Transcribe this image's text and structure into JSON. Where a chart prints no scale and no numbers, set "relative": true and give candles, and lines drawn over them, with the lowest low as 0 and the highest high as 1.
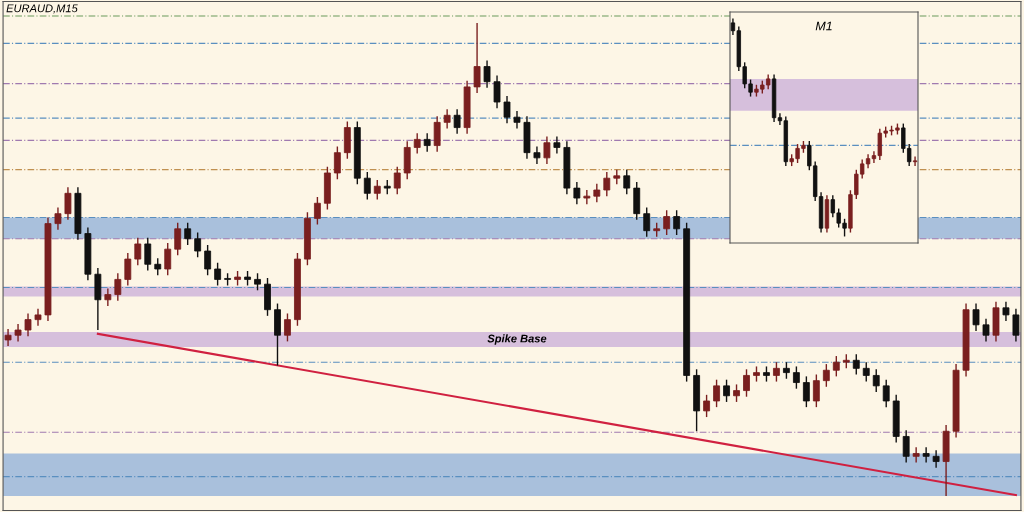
{
  "chart_data": [
    {
      "type": "candlestick",
      "title": "EURAUD,M15",
      "relative": true,
      "categories": [
        null,
        null,
        null,
        null,
        null,
        null,
        null,
        null,
        null,
        null,
        null,
        null,
        null,
        null,
        null,
        null,
        null,
        null,
        null,
        null,
        null,
        null,
        null,
        null,
        null,
        null,
        null,
        null,
        null,
        null,
        null,
        null,
        null,
        null,
        null,
        null,
        null,
        null,
        null,
        null,
        null,
        null,
        null,
        null,
        null,
        null,
        null,
        null,
        null,
        null,
        null,
        null,
        null,
        null,
        null,
        null,
        null,
        null,
        null,
        null,
        null,
        null,
        null,
        null,
        null,
        null,
        null,
        null,
        null,
        null,
        null,
        null,
        null,
        null,
        null,
        null,
        null,
        null,
        null,
        null,
        null,
        null,
        null,
        null,
        null,
        null,
        null,
        null,
        null,
        null,
        null,
        null,
        null,
        null,
        null,
        null,
        null,
        null,
        null,
        null,
        null,
        null
      ],
      "ohlc": [
        [
          0.33,
          0.353,
          0.317,
          0.34
        ],
        [
          0.34,
          0.364,
          0.327,
          0.351
        ],
        [
          0.351,
          0.386,
          0.338,
          0.373
        ],
        [
          0.373,
          0.396,
          0.36,
          0.383
        ],
        [
          0.383,
          0.589,
          0.37,
          0.576
        ],
        [
          0.576,
          0.61,
          0.563,
          0.597
        ],
        [
          0.597,
          0.653,
          0.584,
          0.64
        ],
        [
          0.64,
          0.653,
          0.542,
          0.555
        ],
        [
          0.555,
          0.568,
          0.456,
          0.469
        ],
        [
          0.469,
          0.482,
          0.351,
          0.415
        ],
        [
          0.415,
          0.439,
          0.402,
          0.426
        ],
        [
          0.426,
          0.471,
          0.413,
          0.458
        ],
        [
          0.458,
          0.514,
          0.445,
          0.501
        ],
        [
          0.501,
          0.546,
          0.488,
          0.533
        ],
        [
          0.533,
          0.546,
          0.477,
          0.49
        ],
        [
          0.49,
          0.503,
          0.467,
          0.48
        ],
        [
          0.48,
          0.535,
          0.467,
          0.522
        ],
        [
          0.522,
          0.578,
          0.509,
          0.565
        ],
        [
          0.565,
          0.578,
          0.531,
          0.544
        ],
        [
          0.544,
          0.557,
          0.505,
          0.518
        ],
        [
          0.518,
          0.531,
          0.467,
          0.48
        ],
        [
          0.48,
          0.493,
          0.445,
          0.458
        ],
        [
          0.458,
          0.471,
          0.445,
          0.458
        ],
        [
          0.458,
          0.476,
          0.445,
          0.463
        ],
        [
          0.463,
          0.476,
          0.445,
          0.458
        ],
        [
          0.458,
          0.471,
          0.435,
          0.448
        ],
        [
          0.448,
          0.461,
          0.381,
          0.394
        ],
        [
          0.394,
          0.407,
          0.276,
          0.34
        ],
        [
          0.34,
          0.386,
          0.327,
          0.373
        ],
        [
          0.373,
          0.514,
          0.36,
          0.501
        ],
        [
          0.501,
          0.6,
          0.488,
          0.587
        ],
        [
          0.587,
          0.632,
          0.574,
          0.619
        ],
        [
          0.619,
          0.696,
          0.606,
          0.683
        ],
        [
          0.683,
          0.739,
          0.67,
          0.726
        ],
        [
          0.726,
          0.792,
          0.713,
          0.779
        ],
        [
          0.779,
          0.792,
          0.659,
          0.672
        ],
        [
          0.672,
          0.685,
          0.627,
          0.64
        ],
        [
          0.64,
          0.668,
          0.627,
          0.655
        ],
        [
          0.655,
          0.668,
          0.638,
          0.651
        ],
        [
          0.651,
          0.696,
          0.638,
          0.683
        ],
        [
          0.683,
          0.75,
          0.67,
          0.737
        ],
        [
          0.737,
          0.767,
          0.724,
          0.754
        ],
        [
          0.754,
          0.767,
          0.728,
          0.741
        ],
        [
          0.741,
          0.803,
          0.728,
          0.79
        ],
        [
          0.79,
          0.818,
          0.777,
          0.805
        ],
        [
          0.805,
          0.818,
          0.766,
          0.779
        ],
        [
          0.779,
          0.878,
          0.766,
          0.865
        ],
        [
          0.865,
          1.0,
          0.852,
          0.908
        ],
        [
          0.908,
          0.921,
          0.863,
          0.876
        ],
        [
          0.876,
          0.889,
          0.82,
          0.833
        ],
        [
          0.833,
          0.846,
          0.788,
          0.801
        ],
        [
          0.801,
          0.814,
          0.777,
          0.79
        ],
        [
          0.79,
          0.803,
          0.713,
          0.726
        ],
        [
          0.726,
          0.739,
          0.702,
          0.715
        ],
        [
          0.715,
          0.76,
          0.702,
          0.747
        ],
        [
          0.747,
          0.76,
          0.724,
          0.737
        ],
        [
          0.737,
          0.75,
          0.638,
          0.651
        ],
        [
          0.651,
          0.664,
          0.617,
          0.63
        ],
        [
          0.63,
          0.647,
          0.617,
          0.634
        ],
        [
          0.634,
          0.66,
          0.621,
          0.647
        ],
        [
          0.647,
          0.685,
          0.634,
          0.672
        ],
        [
          0.672,
          0.69,
          0.659,
          0.677
        ],
        [
          0.677,
          0.69,
          0.638,
          0.651
        ],
        [
          0.651,
          0.664,
          0.584,
          0.597
        ],
        [
          0.597,
          0.61,
          0.548,
          0.561
        ],
        [
          0.561,
          0.578,
          0.548,
          0.565
        ],
        [
          0.565,
          0.604,
          0.552,
          0.591
        ],
        [
          0.591,
          0.604,
          0.552,
          0.565
        ],
        [
          0.565,
          0.578,
          0.242,
          0.255
        ],
        [
          0.255,
          0.268,
          0.137,
          0.18
        ],
        [
          0.18,
          0.214,
          0.167,
          0.201
        ],
        [
          0.201,
          0.246,
          0.188,
          0.233
        ],
        [
          0.233,
          0.246,
          0.199,
          0.212
        ],
        [
          0.212,
          0.236,
          0.199,
          0.223
        ],
        [
          0.223,
          0.268,
          0.21,
          0.255
        ],
        [
          0.255,
          0.274,
          0.242,
          0.261
        ],
        [
          0.261,
          0.274,
          0.242,
          0.255
        ],
        [
          0.255,
          0.283,
          0.242,
          0.27
        ],
        [
          0.27,
          0.283,
          0.248,
          0.261
        ],
        [
          0.261,
          0.274,
          0.227,
          0.24
        ],
        [
          0.24,
          0.253,
          0.188,
          0.201
        ],
        [
          0.201,
          0.257,
          0.188,
          0.244
        ],
        [
          0.244,
          0.279,
          0.231,
          0.266
        ],
        [
          0.266,
          0.296,
          0.253,
          0.283
        ],
        [
          0.283,
          0.3,
          0.27,
          0.287
        ],
        [
          0.287,
          0.3,
          0.257,
          0.27
        ],
        [
          0.27,
          0.283,
          0.242,
          0.255
        ],
        [
          0.255,
          0.268,
          0.22,
          0.233
        ],
        [
          0.233,
          0.246,
          0.188,
          0.201
        ],
        [
          0.201,
          0.214,
          0.113,
          0.126
        ],
        [
          0.126,
          0.139,
          0.071,
          0.084
        ],
        [
          0.084,
          0.103,
          0.071,
          0.09
        ],
        [
          0.09,
          0.103,
          0.071,
          0.084
        ],
        [
          0.084,
          0.097,
          0.06,
          0.073
        ],
        [
          0.073,
          0.15,
          0.0,
          0.137
        ],
        [
          0.137,
          0.279,
          0.124,
          0.266
        ],
        [
          0.266,
          0.407,
          0.253,
          0.394
        ],
        [
          0.394,
          0.407,
          0.349,
          0.362
        ],
        [
          0.362,
          0.375,
          0.327,
          0.34
        ],
        [
          0.34,
          0.411,
          0.327,
          0.398
        ],
        [
          0.398,
          0.411,
          0.37,
          0.383
        ],
        [
          0.383,
          0.396,
          0.327,
          0.34
        ]
      ],
      "colors": [
        "#7a1f1f",
        "#7a1f1f",
        "#7a1f1f",
        "#7a1f1f",
        "#7a1f1f",
        "#7a1f1f",
        "#7a1f1f",
        "#111111",
        "#111111",
        "#111111",
        "#7a1f1f",
        "#7a1f1f",
        "#7a1f1f",
        "#7a1f1f",
        "#111111",
        "#111111",
        "#7a1f1f",
        "#7a1f1f",
        "#111111",
        "#111111",
        "#111111",
        "#111111",
        "#111111",
        "#7a1f1f",
        "#111111",
        "#111111",
        "#111111",
        "#111111",
        "#7a1f1f",
        "#7a1f1f",
        "#7a1f1f",
        "#7a1f1f",
        "#7a1f1f",
        "#7a1f1f",
        "#7a1f1f",
        "#111111",
        "#111111",
        "#7a1f1f",
        "#111111",
        "#7a1f1f",
        "#7a1f1f",
        "#7a1f1f",
        "#111111",
        "#7a1f1f",
        "#7a1f1f",
        "#111111",
        "#7a1f1f",
        "#7a1f1f",
        "#111111",
        "#111111",
        "#111111",
        "#111111",
        "#111111",
        "#111111",
        "#7a1f1f",
        "#111111",
        "#111111",
        "#111111",
        "#7a1f1f",
        "#7a1f1f",
        "#7a1f1f",
        "#7a1f1f",
        "#111111",
        "#111111",
        "#111111",
        "#7a1f1f",
        "#7a1f1f",
        "#111111",
        "#111111",
        "#111111",
        "#7a1f1f",
        "#7a1f1f",
        "#111111",
        "#7a1f1f",
        "#7a1f1f",
        "#7a1f1f",
        "#111111",
        "#7a1f1f",
        "#111111",
        "#111111",
        "#111111",
        "#7a1f1f",
        "#7a1f1f",
        "#7a1f1f",
        "#7a1f1f",
        "#111111",
        "#111111",
        "#111111",
        "#111111",
        "#111111",
        "#111111",
        "#7a1f1f",
        "#111111",
        "#111111",
        "#7a1f1f",
        "#7a1f1f",
        "#7a1f1f",
        "#111111",
        "#111111",
        "#7a1f1f",
        "#111111",
        "#111111"
      ],
      "series": [
        {
          "type": "line",
          "color": "#d02040",
          "values": [
            null,
            null,
            null,
            null,
            null,
            null,
            null,
            null,
            null,
            0.343,
            null,
            null,
            null,
            null,
            null,
            null,
            null,
            null,
            null,
            null,
            null,
            null,
            null,
            null,
            null,
            null,
            null,
            null,
            null,
            null,
            null,
            null,
            null,
            null,
            null,
            null,
            null,
            null,
            null,
            null,
            null,
            null,
            null,
            null,
            null,
            null,
            null,
            null,
            null,
            null,
            null,
            null,
            null,
            null,
            null,
            null,
            null,
            null,
            null,
            null,
            null,
            null,
            null,
            null,
            null,
            null,
            null,
            null,
            null,
            null,
            null,
            null,
            null,
            null,
            null,
            null,
            null,
            null,
            null,
            null,
            null,
            null,
            null,
            null,
            null,
            null,
            null,
            null,
            null,
            null,
            null,
            null,
            null,
            null,
            null,
            null,
            null,
            null,
            null,
            null,
            null,
            0.002
          ]
        }
      ],
      "ref_lines": [
        {
          "axis": "y",
          "value": 1.015,
          "color": "#6a9a5a",
          "line_style": "dashed"
        },
        {
          "axis": "y",
          "value": 0.957,
          "color": "#5a8fc0",
          "line_style": "dashed"
        },
        {
          "axis": "y",
          "value": 0.872,
          "color": "#a07ab0",
          "line_style": "dashed"
        },
        {
          "axis": "y",
          "value": 0.799,
          "color": "#5a8fc0",
          "line_style": "dashed"
        },
        {
          "axis": "y",
          "value": 0.752,
          "color": "#a07ab0",
          "line_style": "dashed"
        },
        {
          "axis": "y",
          "value": 0.69,
          "color": "#c09050",
          "line_style": "dashed"
        },
        {
          "axis": "y",
          "value": 0.589,
          "color": "#5a8fc0",
          "line_style": "dashed"
        },
        {
          "axis": "y",
          "value": 0.544,
          "color": "#a07ab0",
          "line_style": "dashed"
        },
        {
          "axis": "y",
          "value": 0.441,
          "color": "#5a8fc0",
          "line_style": "dashed"
        },
        {
          "axis": "y",
          "value": 0.283,
          "color": "#5a8fc0",
          "line_style": "dashed"
        },
        {
          "axis": "y",
          "value": 0.135,
          "color": "#a07ab0",
          "line_style": "dashed"
        },
        {
          "axis": "y",
          "value": 0.041,
          "color": "#5a8fc0",
          "line_style": "dashed"
        }
      ],
      "bands": [
        {
          "axis": "y",
          "from": 0.544,
          "to": 0.589,
          "color": "#a9c0dc"
        },
        {
          "axis": "y",
          "from": 0.422,
          "to": 0.443,
          "color": "#d6bfdc"
        },
        {
          "axis": "y",
          "from": 0.315,
          "to": 0.347,
          "color": "#d6bfdc",
          "label": "Spike Base"
        },
        {
          "axis": "y",
          "from": 0.0,
          "to": 0.09,
          "color": "#a9c0dc"
        }
      ]
    },
    {
      "type": "candlestick",
      "title": "M1",
      "relative": true,
      "categories": [
        null,
        null,
        null,
        null,
        null,
        null,
        null,
        null,
        null,
        null,
        null,
        null,
        null,
        null,
        null,
        null,
        null,
        null,
        null,
        null,
        null,
        null,
        null,
        null,
        null,
        null,
        null,
        null,
        null,
        null,
        null,
        null
      ],
      "ohlc": [
        [
          0.98,
          1.0,
          0.924,
          0.944
        ],
        [
          0.944,
          0.964,
          0.759,
          0.779
        ],
        [
          0.779,
          0.799,
          0.68,
          0.7
        ],
        [
          0.7,
          0.72,
          0.642,
          0.662
        ],
        [
          0.662,
          0.696,
          0.642,
          0.676
        ],
        [
          0.676,
          0.715,
          0.656,
          0.695
        ],
        [
          0.695,
          0.743,
          0.675,
          0.723
        ],
        [
          0.723,
          0.743,
          0.525,
          0.545
        ],
        [
          0.545,
          0.565,
          0.511,
          0.531
        ],
        [
          0.531,
          0.551,
          0.323,
          0.343
        ],
        [
          0.343,
          0.377,
          0.323,
          0.357
        ],
        [
          0.357,
          0.424,
          0.337,
          0.404
        ],
        [
          0.404,
          0.438,
          0.384,
          0.418
        ],
        [
          0.418,
          0.438,
          0.304,
          0.324
        ],
        [
          0.324,
          0.344,
          0.163,
          0.183
        ],
        [
          0.183,
          0.203,
          0.018,
          0.038
        ],
        [
          0.038,
          0.189,
          0.018,
          0.169
        ],
        [
          0.169,
          0.189,
          0.088,
          0.108
        ],
        [
          0.108,
          0.128,
          0.041,
          0.061
        ],
        [
          0.061,
          0.081,
          0.0,
          0.038
        ],
        [
          0.038,
          0.212,
          0.018,
          0.192
        ],
        [
          0.192,
          0.306,
          0.172,
          0.286
        ],
        [
          0.286,
          0.353,
          0.266,
          0.333
        ],
        [
          0.333,
          0.377,
          0.313,
          0.357
        ],
        [
          0.357,
          0.391,
          0.337,
          0.371
        ],
        [
          0.371,
          0.494,
          0.351,
          0.474
        ],
        [
          0.474,
          0.504,
          0.454,
          0.484
        ],
        [
          0.484,
          0.508,
          0.464,
          0.488
        ],
        [
          0.488,
          0.518,
          0.468,
          0.498
        ],
        [
          0.498,
          0.518,
          0.384,
          0.404
        ],
        [
          0.404,
          0.424,
          0.323,
          0.343
        ],
        [
          0.343,
          0.367,
          0.323,
          0.347
        ]
      ],
      "colors": [
        "#111111",
        "#111111",
        "#111111",
        "#111111",
        "#7a1f1f",
        "#7a1f1f",
        "#7a1f1f",
        "#111111",
        "#111111",
        "#111111",
        "#7a1f1f",
        "#7a1f1f",
        "#7a1f1f",
        "#111111",
        "#111111",
        "#111111",
        "#7a1f1f",
        "#111111",
        "#111111",
        "#111111",
        "#7a1f1f",
        "#7a1f1f",
        "#7a1f1f",
        "#7a1f1f",
        "#7a1f1f",
        "#7a1f1f",
        "#7a1f1f",
        "#7a1f1f",
        "#7a1f1f",
        "#111111",
        "#111111",
        "#7a1f1f"
      ],
      "ref_lines": [
        {
          "axis": "y",
          "value": 0.418,
          "color": "#5a8fc0",
          "line_style": "dashed"
        }
      ],
      "bands": [
        {
          "axis": "y",
          "from": 0.577,
          "to": 0.723,
          "color": "#d6bfdc"
        }
      ]
    }
  ]
}
